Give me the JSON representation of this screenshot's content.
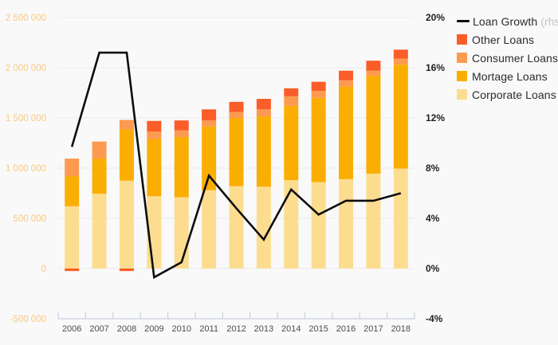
{
  "colors": {
    "background": "#f9f9f9",
    "grid": "#ebebeb",
    "axis_line": "#c9cfe2",
    "left_axis_text": "#fbc87e",
    "right_axis_text": "#1f1f1f",
    "x_axis_text": "#4d4d4d",
    "line": "#0d0d0d",
    "other_loans": "#fa5d28",
    "consumer_loans": "#fc9b50",
    "mortage_loans": "#fbae02",
    "corporate_loans": "#fcdd90"
  },
  "chart_data": {
    "type": "bar",
    "subtype": "stacked-bars-with-line-overlay",
    "title": "",
    "categories": [
      "2006",
      "2007",
      "2008",
      "2009",
      "2010",
      "2011",
      "2012",
      "2013",
      "2014",
      "2015",
      "2016",
      "2017",
      "2018"
    ],
    "series": [
      {
        "name": "Corporate Loans",
        "type": "bar",
        "color": "#fcdd90",
        "values": [
          620000,
          745000,
          875000,
          720000,
          710000,
          780000,
          820000,
          815000,
          880000,
          860000,
          890000,
          945000,
          995000
        ]
      },
      {
        "name": "Mortage Loans",
        "type": "bar",
        "color": "#fbae02",
        "values": [
          300000,
          350000,
          510000,
          570000,
          600000,
          635000,
          680000,
          700000,
          740000,
          840000,
          920000,
          975000,
          1035000
        ]
      },
      {
        "name": "Consumer Loans",
        "type": "bar",
        "color": "#fc9b50",
        "values": [
          175000,
          170000,
          95000,
          75000,
          65000,
          60000,
          60000,
          70000,
          95000,
          70000,
          65000,
          50000,
          60000
        ]
      },
      {
        "name": "Other Loans",
        "type": "bar",
        "color": "#fa5d28",
        "values": [
          -25000,
          0,
          -25000,
          105000,
          100000,
          110000,
          100000,
          105000,
          80000,
          90000,
          95000,
          100000,
          90000
        ]
      },
      {
        "name": "Loan Growth",
        "type": "line",
        "axis": "right",
        "color": "#0d0d0d",
        "values": [
          9.7,
          17.2,
          17.2,
          -0.7,
          0.5,
          7.4,
          4.8,
          2.3,
          6.3,
          4.3,
          5.4,
          5.4,
          6.0
        ]
      }
    ],
    "left_axis": {
      "values": [
        2500000,
        2000000,
        1500000,
        1000000,
        500000,
        0,
        -500000
      ],
      "ticks": [
        "2 500 000",
        "2 000 000",
        "1 500 000",
        "1 000 000",
        "500 000",
        "0",
        "-500 000"
      ]
    },
    "right_axis": {
      "values": [
        20,
        16,
        12,
        8,
        4,
        0,
        -4
      ],
      "ticks": [
        "20%",
        "16%",
        "12%",
        "8%",
        "4%",
        "0%",
        "-4%"
      ]
    },
    "grid": true,
    "legend_position": "top-right",
    "legend": [
      {
        "label": "Loan Growth",
        "suffix": " (rhs)",
        "swatch": "line",
        "color": "#0d0d0d"
      },
      {
        "label": "Other Loans",
        "suffix": "",
        "swatch": "square",
        "color": "#fa5d28"
      },
      {
        "label": "Consumer Loans",
        "suffix": "",
        "swatch": "square",
        "color": "#fc9b50"
      },
      {
        "label": "Mortage Loans",
        "suffix": "",
        "swatch": "square",
        "color": "#fbae02"
      },
      {
        "label": "Corporate Loans",
        "suffix": "",
        "swatch": "square",
        "color": "#fcdd90"
      }
    ]
  }
}
